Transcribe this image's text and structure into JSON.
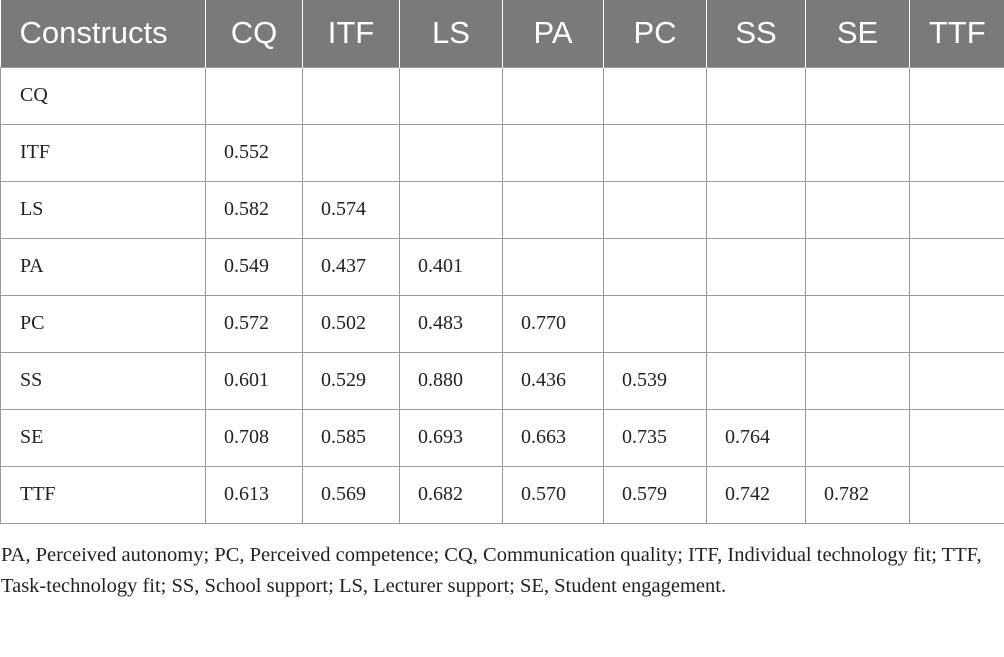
{
  "table": {
    "headers": [
      "Constructs",
      "CQ",
      "ITF",
      "LS",
      "PA",
      "PC",
      "SS",
      "SE",
      "TTF"
    ],
    "rows": [
      [
        "CQ",
        "",
        "",
        "",
        "",
        "",
        "",
        "",
        ""
      ],
      [
        "ITF",
        "0.552",
        "",
        "",
        "",
        "",
        "",
        "",
        ""
      ],
      [
        "LS",
        "0.582",
        "0.574",
        "",
        "",
        "",
        "",
        "",
        ""
      ],
      [
        "PA",
        "0.549",
        "0.437",
        "0.401",
        "",
        "",
        "",
        "",
        ""
      ],
      [
        "PC",
        "0.572",
        "0.502",
        "0.483",
        "0.770",
        "",
        "",
        "",
        ""
      ],
      [
        "SS",
        "0.601",
        "0.529",
        "0.880",
        "0.436",
        "0.539",
        "",
        "",
        ""
      ],
      [
        "SE",
        "0.708",
        "0.585",
        "0.693",
        "0.663",
        "0.735",
        "0.764",
        "",
        ""
      ],
      [
        "TTF",
        "0.613",
        "0.569",
        "0.682",
        "0.570",
        "0.579",
        "0.742",
        "0.782",
        ""
      ]
    ]
  },
  "footnote": "PA, Perceived autonomy; PC, Perceived competence; CQ, Communication quality; ITF, Individual technology fit; TTF, Task-technology fit; SS, School support; LS, Lecturer support; SE, Student engagement.",
  "colors": {
    "header_background": "#7a7a7a",
    "header_text": "#ffffff",
    "grid_lines": "#9a9a9a",
    "body_text": "#222222"
  }
}
